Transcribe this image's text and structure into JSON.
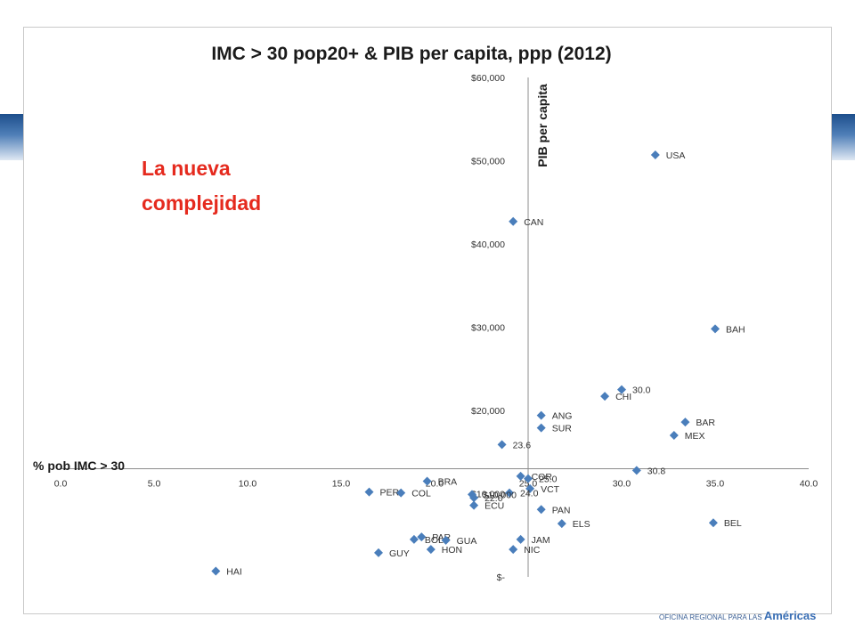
{
  "slide": {
    "note_line1": "La nueva",
    "note_line2": "complejidad",
    "footer_small": "OFICINA REGIONAL PARA LAS",
    "footer_big": "Américas"
  },
  "chart_data": {
    "type": "scatter",
    "title": "IMC > 30 pop20+ & PIB per capita, ppp (2012)",
    "xlabel": "% pob IMC > 30",
    "ylabel": "PIB per capita",
    "xlim": [
      0,
      40
    ],
    "ylim": [
      0,
      60000
    ],
    "x_crosses_y_at": 13000,
    "y_crosses_x_at": 25.0,
    "x_ticks": [
      "0.0",
      "5.0",
      "10.0",
      "15.0",
      "20.0",
      "25.0",
      "30.0",
      "35.0",
      "40.0"
    ],
    "y_ticks": [
      "$-",
      "$10,000",
      "$20,000",
      "$30,000",
      "$40,000",
      "$50,000",
      "$60,000"
    ],
    "y_tick_values": [
      0,
      10000,
      20000,
      30000,
      40000,
      50000,
      60000
    ],
    "marker_color": "#4a7ebb",
    "grid": false,
    "points": [
      {
        "label": "USA",
        "x": 31.8,
        "y": 50700
      },
      {
        "label": "CAN",
        "x": 24.2,
        "y": 42700
      },
      {
        "label": "BAH",
        "x": 35.0,
        "y": 29800
      },
      {
        "label": "30.0",
        "x": 30.0,
        "y": 22500
      },
      {
        "label": "CHI",
        "x": 29.1,
        "y": 21700
      },
      {
        "label": "ANG",
        "x": 25.7,
        "y": 19400
      },
      {
        "label": "SUR",
        "x": 25.7,
        "y": 17900
      },
      {
        "label": "BAR",
        "x": 33.4,
        "y": 18600
      },
      {
        "label": "MEX",
        "x": 32.8,
        "y": 17000
      },
      {
        "label": "23.6",
        "x": 23.6,
        "y": 15900
      },
      {
        "label": "30.8",
        "x": 30.8,
        "y": 12800
      },
      {
        "label": "BRA",
        "x": 19.6,
        "y": 11500
      },
      {
        "label": "COR",
        "x": 24.6,
        "y": 12100
      },
      {
        "label": "25.0",
        "x": 25.0,
        "y": 11800
      },
      {
        "label": "VCT",
        "x": 25.1,
        "y": 10600
      },
      {
        "label": "24.0",
        "x": 24.0,
        "y": 10100
      },
      {
        "label": "$10,000",
        "x": 22.0,
        "y": 9900
      },
      {
        "label": "22.0",
        "x": 22.1,
        "y": 9500
      },
      {
        "label": "ECU",
        "x": 22.1,
        "y": 8600
      },
      {
        "label": "PER",
        "x": 16.5,
        "y": 10200
      },
      {
        "label": "COL",
        "x": 18.2,
        "y": 10100
      },
      {
        "label": "PAN",
        "x": 25.7,
        "y": 8100
      },
      {
        "label": "ELS",
        "x": 26.8,
        "y": 6400
      },
      {
        "label": "BEL",
        "x": 34.9,
        "y": 6500
      },
      {
        "label": "PAR",
        "x": 19.3,
        "y": 4800
      },
      {
        "label": "BOL",
        "x": 18.9,
        "y": 4500
      },
      {
        "label": "GUA",
        "x": 20.6,
        "y": 4400
      },
      {
        "label": "HON",
        "x": 19.8,
        "y": 3300
      },
      {
        "label": "GUY",
        "x": 17.0,
        "y": 2900
      },
      {
        "label": "JAM",
        "x": 24.6,
        "y": 4500
      },
      {
        "label": "NIC",
        "x": 24.2,
        "y": 3300
      },
      {
        "label": "HAI",
        "x": 8.3,
        "y": 700
      }
    ]
  }
}
